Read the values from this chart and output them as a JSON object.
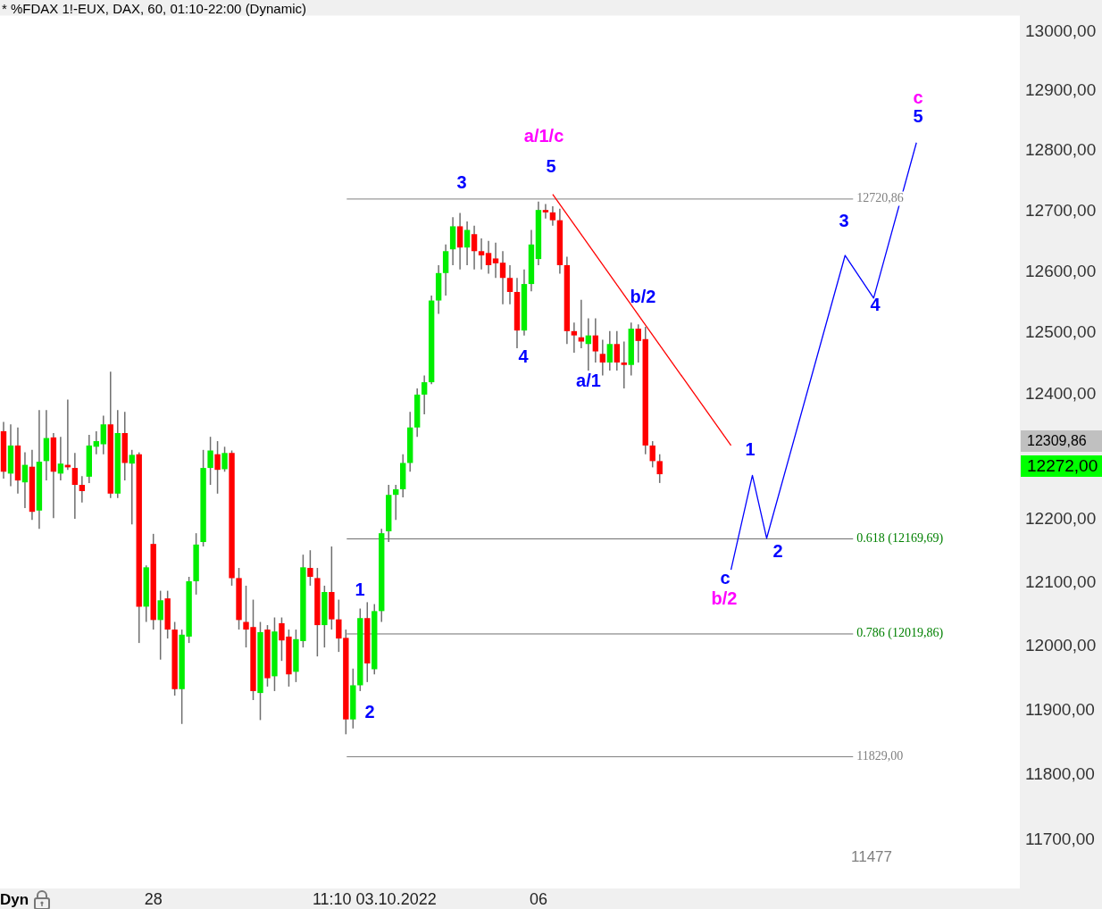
{
  "chart_data": {
    "type": "candlestick",
    "title": "* %FDAX 1!-EUX, DAX, 60, 01:10-22:00 (Dynamic)",
    "log": "y",
    "grid": false,
    "legend": false,
    "categories": [
      null,
      null,
      null,
      null,
      null,
      null,
      null,
      null,
      null,
      null,
      null,
      null,
      null,
      null,
      null,
      null,
      null,
      null,
      null,
      null,
      null,
      "28",
      null,
      null,
      null,
      null,
      null,
      null,
      null,
      null,
      null,
      null,
      null,
      null,
      null,
      null,
      null,
      null,
      null,
      null,
      null,
      null,
      null,
      null,
      null,
      null,
      null,
      null,
      null,
      null,
      null,
      null,
      "11:10 03.10.2022",
      null,
      null,
      null,
      null,
      null,
      null,
      null,
      null,
      null,
      null,
      null,
      null,
      null,
      null,
      null,
      null,
      null,
      null,
      null,
      null,
      null,
      null,
      "06",
      null,
      null,
      null,
      null,
      null,
      null,
      null,
      null,
      null,
      null,
      null,
      null,
      null,
      null,
      null,
      null,
      null,
      null,
      null,
      null,
      null,
      null,
      null,
      null,
      null,
      null,
      null,
      null,
      null,
      null,
      null,
      null,
      null,
      null,
      null,
      null,
      null,
      null,
      null,
      null,
      null,
      null,
      null,
      null,
      null,
      null,
      null,
      null,
      null,
      null,
      null,
      null,
      null,
      null,
      null,
      null,
      null,
      null,
      null,
      null,
      null,
      null,
      null,
      null,
      null,
      null,
      null
    ],
    "ylim": [
      11627,
      13028
    ],
    "yticks": [
      {
        "value": 11700,
        "label": "11700,00"
      },
      {
        "value": 11800,
        "label": "11800,00"
      },
      {
        "value": 11900,
        "label": "11900,00"
      },
      {
        "value": 12000,
        "label": "12000,00"
      },
      {
        "value": 12100,
        "label": "12100,00"
      },
      {
        "value": 12200,
        "label": "12200,00"
      },
      {
        "value": 12400,
        "label": "12400,00"
      },
      {
        "value": 12500,
        "label": "12500,00"
      },
      {
        "value": 12600,
        "label": "12600,00"
      },
      {
        "value": 12700,
        "label": "12700,00"
      },
      {
        "value": 12800,
        "label": "12800,00"
      },
      {
        "value": 12900,
        "label": "12900,00"
      },
      {
        "value": 13000,
        "label": "13000,00"
      }
    ],
    "ohlc": [
      [
        12341,
        12356,
        12265,
        12276
      ],
      [
        12273,
        12352,
        12253,
        12318
      ],
      [
        12318,
        12347,
        12241,
        12262
      ],
      [
        12259,
        12307,
        12218,
        12287
      ],
      [
        12284,
        12311,
        12199,
        12212
      ],
      [
        12214,
        12375,
        12185,
        12292
      ],
      [
        12293,
        12375,
        12262,
        12330
      ],
      [
        12331,
        12338,
        12202,
        12276
      ],
      [
        12273,
        12332,
        12262,
        12289
      ],
      [
        12287,
        12392,
        12279,
        12283
      ],
      [
        12282,
        12306,
        12201,
        12255
      ],
      [
        12255,
        12269,
        12227,
        12245
      ],
      [
        12268,
        12335,
        12258,
        12318
      ],
      [
        12316,
        12341,
        12304,
        12325
      ],
      [
        12320,
        12366,
        12304,
        12352
      ],
      [
        12352,
        12437,
        12234,
        12241
      ],
      [
        12241,
        12375,
        12234,
        12338
      ],
      [
        12338,
        12372,
        12262,
        12290
      ],
      [
        12289,
        12311,
        12192,
        12303
      ],
      [
        12304,
        12307,
        12005,
        12062
      ],
      [
        12062,
        12127,
        12038,
        12124
      ],
      [
        12161,
        12177,
        12026,
        12041
      ],
      [
        12041,
        12087,
        11979,
        12072
      ],
      [
        12075,
        12087,
        12012,
        12026
      ],
      [
        12026,
        12038,
        11923,
        11933
      ],
      [
        11933,
        12026,
        11879,
        12018
      ],
      [
        12015,
        12109,
        12005,
        12102
      ],
      [
        12102,
        12178,
        12081,
        12160
      ],
      [
        12164,
        12311,
        12157,
        12282
      ],
      [
        12282,
        12332,
        12255,
        12310
      ],
      [
        12304,
        12325,
        12241,
        12279
      ],
      [
        12280,
        12316,
        12276,
        12306
      ],
      [
        12306,
        12310,
        12095,
        12107
      ],
      [
        12107,
        12123,
        12026,
        12041
      ],
      [
        12038,
        12095,
        11998,
        12026
      ],
      [
        12030,
        12073,
        11916,
        11930
      ],
      [
        11927,
        12038,
        11885,
        12022
      ],
      [
        12026,
        12033,
        11937,
        11950
      ],
      [
        11953,
        12045,
        11930,
        12023
      ],
      [
        12036,
        12045,
        11977,
        12009
      ],
      [
        12015,
        12026,
        11937,
        11956
      ],
      [
        11960,
        12026,
        11944,
        12011
      ],
      [
        12008,
        12144,
        11998,
        12124
      ],
      [
        12123,
        12151,
        12095,
        12109
      ],
      [
        12107,
        12123,
        11984,
        12033
      ],
      [
        12033,
        12095,
        11998,
        12085
      ],
      [
        12085,
        12157,
        12026,
        12042
      ],
      [
        12042,
        12073,
        11991,
        12012
      ],
      [
        12013,
        12026,
        11863,
        11886
      ],
      [
        11886,
        11965,
        11872,
        11939
      ],
      [
        11939,
        12059,
        11930,
        12044
      ],
      [
        12044,
        12069,
        11944,
        11973
      ],
      [
        11964,
        12066,
        11956,
        12055
      ],
      [
        12055,
        12185,
        12038,
        12178
      ],
      [
        12181,
        12255,
        12164,
        12239
      ],
      [
        12239,
        12255,
        12199,
        12248
      ],
      [
        12248,
        12304,
        12235,
        12290
      ],
      [
        12290,
        12372,
        12276,
        12347
      ],
      [
        12347,
        12410,
        12332,
        12400
      ],
      [
        12400,
        12431,
        12368,
        12420
      ],
      [
        12420,
        12561,
        12417,
        12553
      ],
      [
        12553,
        12611,
        12531,
        12598
      ],
      [
        12598,
        12645,
        12561,
        12634
      ],
      [
        12637,
        12690,
        12611,
        12675
      ],
      [
        12675,
        12697,
        12604,
        12640
      ],
      [
        12640,
        12683,
        12611,
        12669
      ],
      [
        12662,
        12676,
        12604,
        12634
      ],
      [
        12634,
        12655,
        12604,
        12627
      ],
      [
        12631,
        12651,
        12597,
        12611
      ],
      [
        12622,
        12648,
        12590,
        12614
      ],
      [
        12615,
        12634,
        12547,
        12590
      ],
      [
        12590,
        12611,
        12547,
        12567
      ],
      [
        12567,
        12590,
        12475,
        12504
      ],
      [
        12504,
        12604,
        12496,
        12580
      ],
      [
        12580,
        12669,
        12568,
        12645
      ],
      [
        12621,
        12716,
        12611,
        12702
      ],
      [
        12702,
        12712,
        12688,
        12698
      ],
      [
        12698,
        12708,
        12676,
        12685
      ],
      [
        12685,
        12704,
        12597,
        12611
      ],
      [
        12611,
        12625,
        12482,
        12503
      ],
      [
        12503,
        12517,
        12468,
        12496
      ],
      [
        12493,
        12554,
        12475,
        12486
      ],
      [
        12482,
        12524,
        12439,
        12496
      ],
      [
        12496,
        12524,
        12452,
        12470
      ],
      [
        12466,
        12489,
        12431,
        12452
      ],
      [
        12452,
        12503,
        12439,
        12482
      ],
      [
        12482,
        12503,
        12439,
        12452
      ],
      [
        12452,
        12486,
        12410,
        12448
      ],
      [
        12448,
        12517,
        12431,
        12507
      ],
      [
        12507,
        12514,
        12452,
        12487
      ],
      [
        12490,
        12510,
        12304,
        12318
      ],
      [
        12318,
        12325,
        12283,
        12293
      ],
      [
        12293,
        12304,
        12258,
        12272
      ],
      null,
      null,
      null,
      null,
      null,
      null,
      null,
      null,
      null,
      null,
      null,
      null,
      null,
      null,
      null,
      null,
      null,
      null,
      null,
      null,
      null,
      null,
      null,
      null,
      null,
      null,
      null,
      null,
      null,
      null,
      null,
      null,
      null,
      null,
      null,
      null,
      null,
      null,
      null,
      null,
      null,
      null,
      null,
      null,
      null,
      null,
      null,
      null,
      null,
      null
    ],
    "series": [
      {
        "type": "line",
        "color": "#ff0000",
        "values": [
          null,
          null,
          null,
          null,
          null,
          null,
          null,
          null,
          null,
          null,
          null,
          null,
          null,
          null,
          null,
          null,
          null,
          null,
          null,
          null,
          null,
          null,
          null,
          null,
          null,
          null,
          null,
          null,
          null,
          null,
          null,
          null,
          null,
          null,
          null,
          null,
          null,
          null,
          null,
          null,
          null,
          null,
          null,
          null,
          null,
          null,
          null,
          null,
          null,
          null,
          null,
          null,
          null,
          null,
          null,
          null,
          null,
          null,
          null,
          null,
          null,
          null,
          null,
          null,
          null,
          null,
          null,
          null,
          null,
          null,
          null,
          null,
          null,
          null,
          null,
          null,
          null,
          12728,
          null,
          null,
          null,
          null,
          null,
          null,
          null,
          null,
          null,
          null,
          null,
          null,
          null,
          null,
          null,
          null,
          null,
          null,
          null,
          null,
          null,
          null,
          null,
          null,
          12318,
          null,
          null,
          null,
          null,
          null,
          null,
          null,
          null,
          null,
          null,
          null,
          null,
          null,
          null,
          null,
          null,
          null,
          null,
          null,
          null,
          null,
          null,
          null,
          null,
          null,
          null,
          null,
          null,
          null,
          null,
          null,
          null,
          null,
          null,
          null,
          null,
          null,
          null,
          null,
          null
        ]
      },
      {
        "type": "line",
        "color": "#0000ff",
        "values": [
          null,
          null,
          null,
          null,
          null,
          null,
          null,
          null,
          null,
          null,
          null,
          null,
          null,
          null,
          null,
          null,
          null,
          null,
          null,
          null,
          null,
          null,
          null,
          null,
          null,
          null,
          null,
          null,
          null,
          null,
          null,
          null,
          null,
          null,
          null,
          null,
          null,
          null,
          null,
          null,
          null,
          null,
          null,
          null,
          null,
          null,
          null,
          null,
          null,
          null,
          null,
          null,
          null,
          null,
          null,
          null,
          null,
          null,
          null,
          null,
          null,
          null,
          null,
          null,
          null,
          null,
          null,
          null,
          null,
          null,
          null,
          null,
          null,
          null,
          null,
          null,
          null,
          null,
          null,
          null,
          null,
          null,
          null,
          null,
          null,
          null,
          null,
          null,
          null,
          null,
          null,
          null,
          null,
          null,
          null,
          null,
          null,
          null,
          null,
          null,
          null,
          null,
          12120,
          null,
          null,
          12270,
          null,
          12170,
          null,
          null,
          null,
          null,
          null,
          null,
          null,
          null,
          null,
          null,
          12627,
          null,
          null,
          null,
          12557,
          null,
          null,
          null,
          null,
          null,
          12814,
          null,
          null,
          null,
          null,
          null,
          null,
          null,
          null,
          null,
          null,
          null,
          null,
          null,
          null
        ]
      }
    ],
    "ref_lines": [
      {
        "axis": "y",
        "value": 12720.86,
        "label": "12720,86",
        "color": "#808080"
      },
      {
        "axis": "y",
        "value": 12169.69,
        "label": "0.618 (12169,69)",
        "color": "#707070"
      },
      {
        "axis": "y",
        "value": 12019.86,
        "label": "0.786 (12019,86)",
        "color": "#707070"
      },
      {
        "axis": "y",
        "value": 11829,
        "label": "11829,00",
        "color": "#808080"
      }
    ],
    "annotations": [
      "a/1/c",
      "5",
      "3",
      "4",
      "a/1",
      "b/2",
      "1",
      "2",
      "1",
      "2",
      "c",
      "b/2",
      "3",
      "4",
      "c",
      "5",
      "11477",
      "12309,86",
      "12272,00",
      "Dyn"
    ]
  }
}
